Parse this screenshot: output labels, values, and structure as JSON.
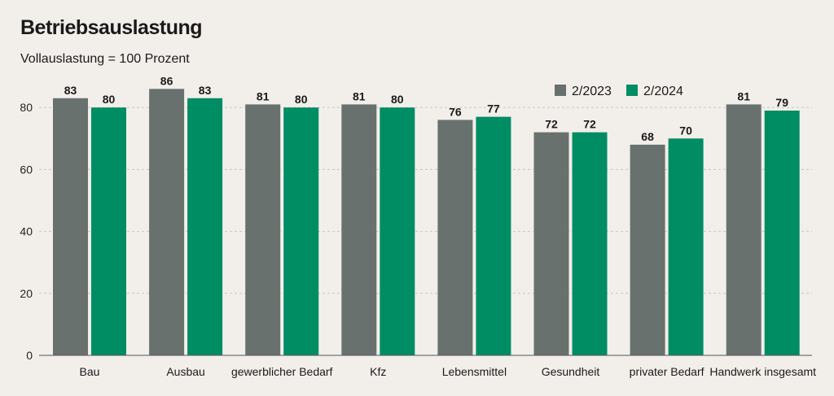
{
  "chart_data": {
    "type": "bar",
    "title": "Betriebsauslastung",
    "subtitle": "Vollauslastung = 100 Prozent",
    "categories": [
      "Bau",
      "Ausbau",
      "gewerblicher Bedarf",
      "Kfz",
      "Lebensmittel",
      "Gesundheit",
      "privater Bedarf",
      "Handwerk insgesamt"
    ],
    "series": [
      {
        "name": "2/2023",
        "color": "#69716f",
        "values": [
          83,
          86,
          81,
          81,
          76,
          72,
          68,
          81
        ]
      },
      {
        "name": "2/2024",
        "color": "#008d63",
        "values": [
          80,
          83,
          80,
          80,
          77,
          72,
          70,
          79
        ]
      }
    ],
    "ylim": [
      0,
      86
    ],
    "yticks": [
      0,
      20,
      40,
      60,
      80
    ],
    "grid": true,
    "legend": "top-right",
    "data_labels": true
  }
}
